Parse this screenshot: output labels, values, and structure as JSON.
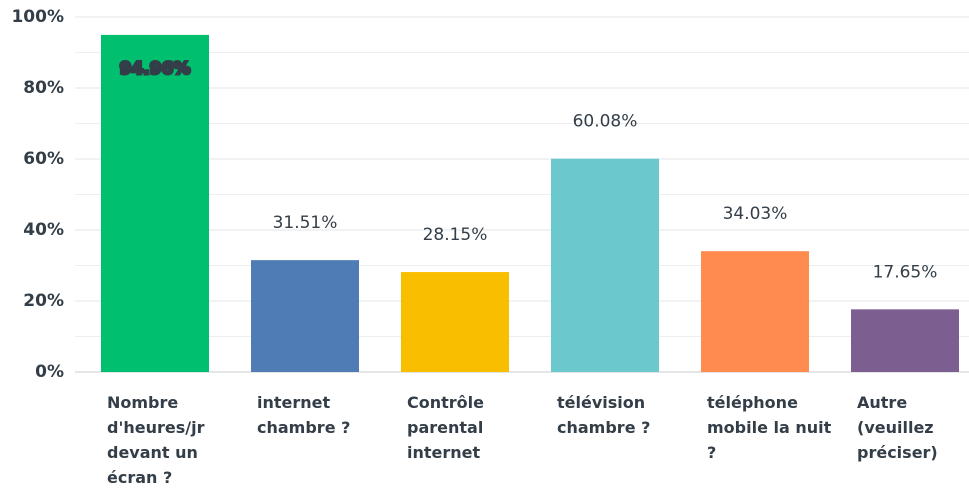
{
  "chart_data": {
    "type": "bar",
    "categories": [
      "Nombre d'heures/jr devant un écran ?",
      "internet chambre ?",
      "Contrôle parental internet",
      "télévision chambre ?",
      "téléphone mobile la nuit ?",
      "Autre (veuillez préciser)"
    ],
    "values": [
      94.96,
      31.51,
      28.15,
      60.08,
      34.03,
      17.65
    ],
    "value_labels": [
      "94.96%",
      "31.51%",
      "28.15%",
      "60.08%",
      "34.03%",
      "17.65%"
    ],
    "colors": [
      "#00bf6f",
      "#507cb6",
      "#f9be00",
      "#6bc8cd",
      "#ff8b4f",
      "#7d5e90"
    ],
    "ylim": [
      0,
      100
    ],
    "yticks": [
      {
        "value": 0,
        "label": "0%"
      },
      {
        "value": 20,
        "label": "20%"
      },
      {
        "value": 40,
        "label": "40%"
      },
      {
        "value": 60,
        "label": "60%"
      },
      {
        "value": 80,
        "label": "80%"
      },
      {
        "value": 100,
        "label": "100%"
      }
    ],
    "minor_yticks": [
      10,
      30,
      50,
      70,
      90
    ],
    "grid": true
  }
}
